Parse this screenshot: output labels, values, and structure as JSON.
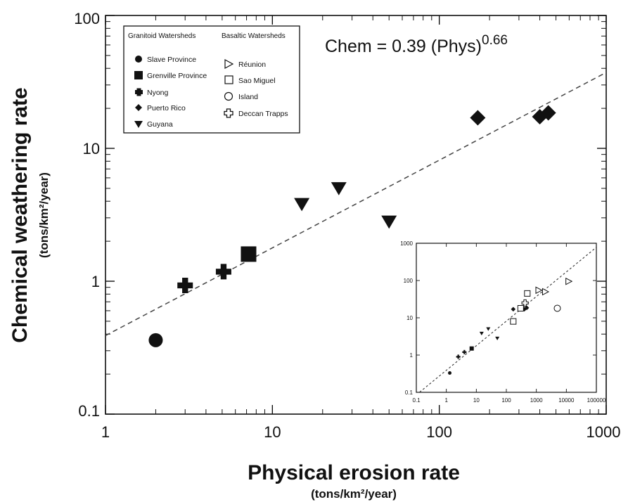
{
  "chart_data": {
    "type": "scatter",
    "xscale": "log",
    "yscale": "log",
    "xlim": [
      1,
      1000
    ],
    "ylim": [
      0.1,
      100
    ],
    "xticks": [
      1,
      10,
      100,
      1000
    ],
    "yticks": [
      0.1,
      1,
      10,
      100
    ],
    "xtick_labels": [
      "1",
      "10",
      "100",
      "1000"
    ],
    "ytick_labels": [
      "0.1",
      "1",
      "10",
      "100"
    ],
    "xlabel": "Physical erosion rate",
    "xlabel_units": "(tons/km²/year)",
    "ylabel": "Chemical weathering rate",
    "ylabel_units": "(tons/km²/year)",
    "equation": {
      "prefix": "Chem = 0.39 (Phys)",
      "exponent": "0.66"
    },
    "fit": {
      "coefficient": 0.39,
      "exponent": 0.66,
      "style": "dashed"
    },
    "grid": false,
    "legend": {
      "placement": "top-left",
      "group_titles": [
        "Granitoid Watersheds",
        "Basaltic Watersheds"
      ],
      "granitoid": [
        {
          "name": "Slave Province",
          "marker": "circle"
        },
        {
          "name": "Grenville Province",
          "marker": "square"
        },
        {
          "name": "Nyong",
          "marker": "cross"
        },
        {
          "name": "Puerto Rico",
          "marker": "diamond"
        },
        {
          "name": "Guyana",
          "marker": "triangle-down"
        }
      ],
      "basaltic": [
        {
          "name": "Réunion",
          "marker": "triangle-right-open"
        },
        {
          "name": "Sao Miguel",
          "marker": "square-open"
        },
        {
          "name": "Island",
          "marker": "circle-open"
        },
        {
          "name": "Deccan Trapps",
          "marker": "cross-open"
        }
      ]
    },
    "series": [
      {
        "name": "Slave Province",
        "marker": "circle",
        "points": [
          [
            2.0,
            0.36
          ]
        ]
      },
      {
        "name": "Grenville Province",
        "marker": "square",
        "points": [
          [
            7.2,
            1.6
          ]
        ]
      },
      {
        "name": "Nyong",
        "marker": "cross",
        "points": [
          [
            3.0,
            0.93
          ],
          [
            5.1,
            1.18
          ]
        ]
      },
      {
        "name": "Puerto Rico",
        "marker": "diamond",
        "points": [
          [
            170,
            17
          ],
          [
            400,
            17.3
          ],
          [
            450,
            18.5
          ]
        ]
      },
      {
        "name": "Guyana",
        "marker": "triangle-down",
        "points": [
          [
            15,
            3.8
          ],
          [
            25,
            5.0
          ],
          [
            50,
            2.8
          ]
        ]
      }
    ],
    "inset": {
      "xscale": "log",
      "yscale": "log",
      "xlim": [
        0.1,
        100000
      ],
      "ylim": [
        0.1,
        1000
      ],
      "xticks": [
        0.1,
        1,
        10,
        100,
        1000,
        10000,
        100000
      ],
      "yticks": [
        0.1,
        1,
        10,
        100,
        1000
      ],
      "xtick_labels": [
        "0.1",
        "1",
        "10",
        "100",
        "1000",
        "10000",
        "100000"
      ],
      "ytick_labels": [
        "0.1",
        "1",
        "10",
        "100",
        "1000"
      ],
      "fit": {
        "coefficient": 0.39,
        "exponent": 0.66,
        "style": "dashed"
      },
      "series": [
        {
          "name": "Slave Province",
          "marker": "circle",
          "points": [
            [
              1.3,
              0.33
            ]
          ]
        },
        {
          "name": "Nyong",
          "marker": "cross",
          "points": [
            [
              2.5,
              0.9
            ],
            [
              4,
              1.2
            ]
          ]
        },
        {
          "name": "Grenville Province",
          "marker": "square",
          "points": [
            [
              7,
              1.5
            ]
          ]
        },
        {
          "name": "Guyana",
          "marker": "triangle-down",
          "points": [
            [
              15,
              3.8
            ],
            [
              25,
              5
            ],
            [
              50,
              2.8
            ]
          ]
        },
        {
          "name": "Puerto Rico",
          "marker": "diamond",
          "points": [
            [
              170,
              17
            ],
            [
              400,
              17
            ],
            [
              480,
              18.5
            ]
          ]
        },
        {
          "name": "Sao Miguel",
          "marker": "square-open",
          "points": [
            [
              170,
              8
            ],
            [
              300,
              18
            ],
            [
              500,
              45
            ]
          ]
        },
        {
          "name": "Deccan Trapps",
          "marker": "cross-open",
          "points": [
            [
              420,
              25
            ]
          ]
        },
        {
          "name": "Réunion",
          "marker": "triangle-right-open",
          "points": [
            [
              1200,
              55
            ],
            [
              2000,
              50
            ],
            [
              12000,
              95
            ]
          ]
        },
        {
          "name": "Island",
          "marker": "circle-open",
          "points": [
            [
              5000,
              18
            ]
          ]
        }
      ]
    }
  }
}
